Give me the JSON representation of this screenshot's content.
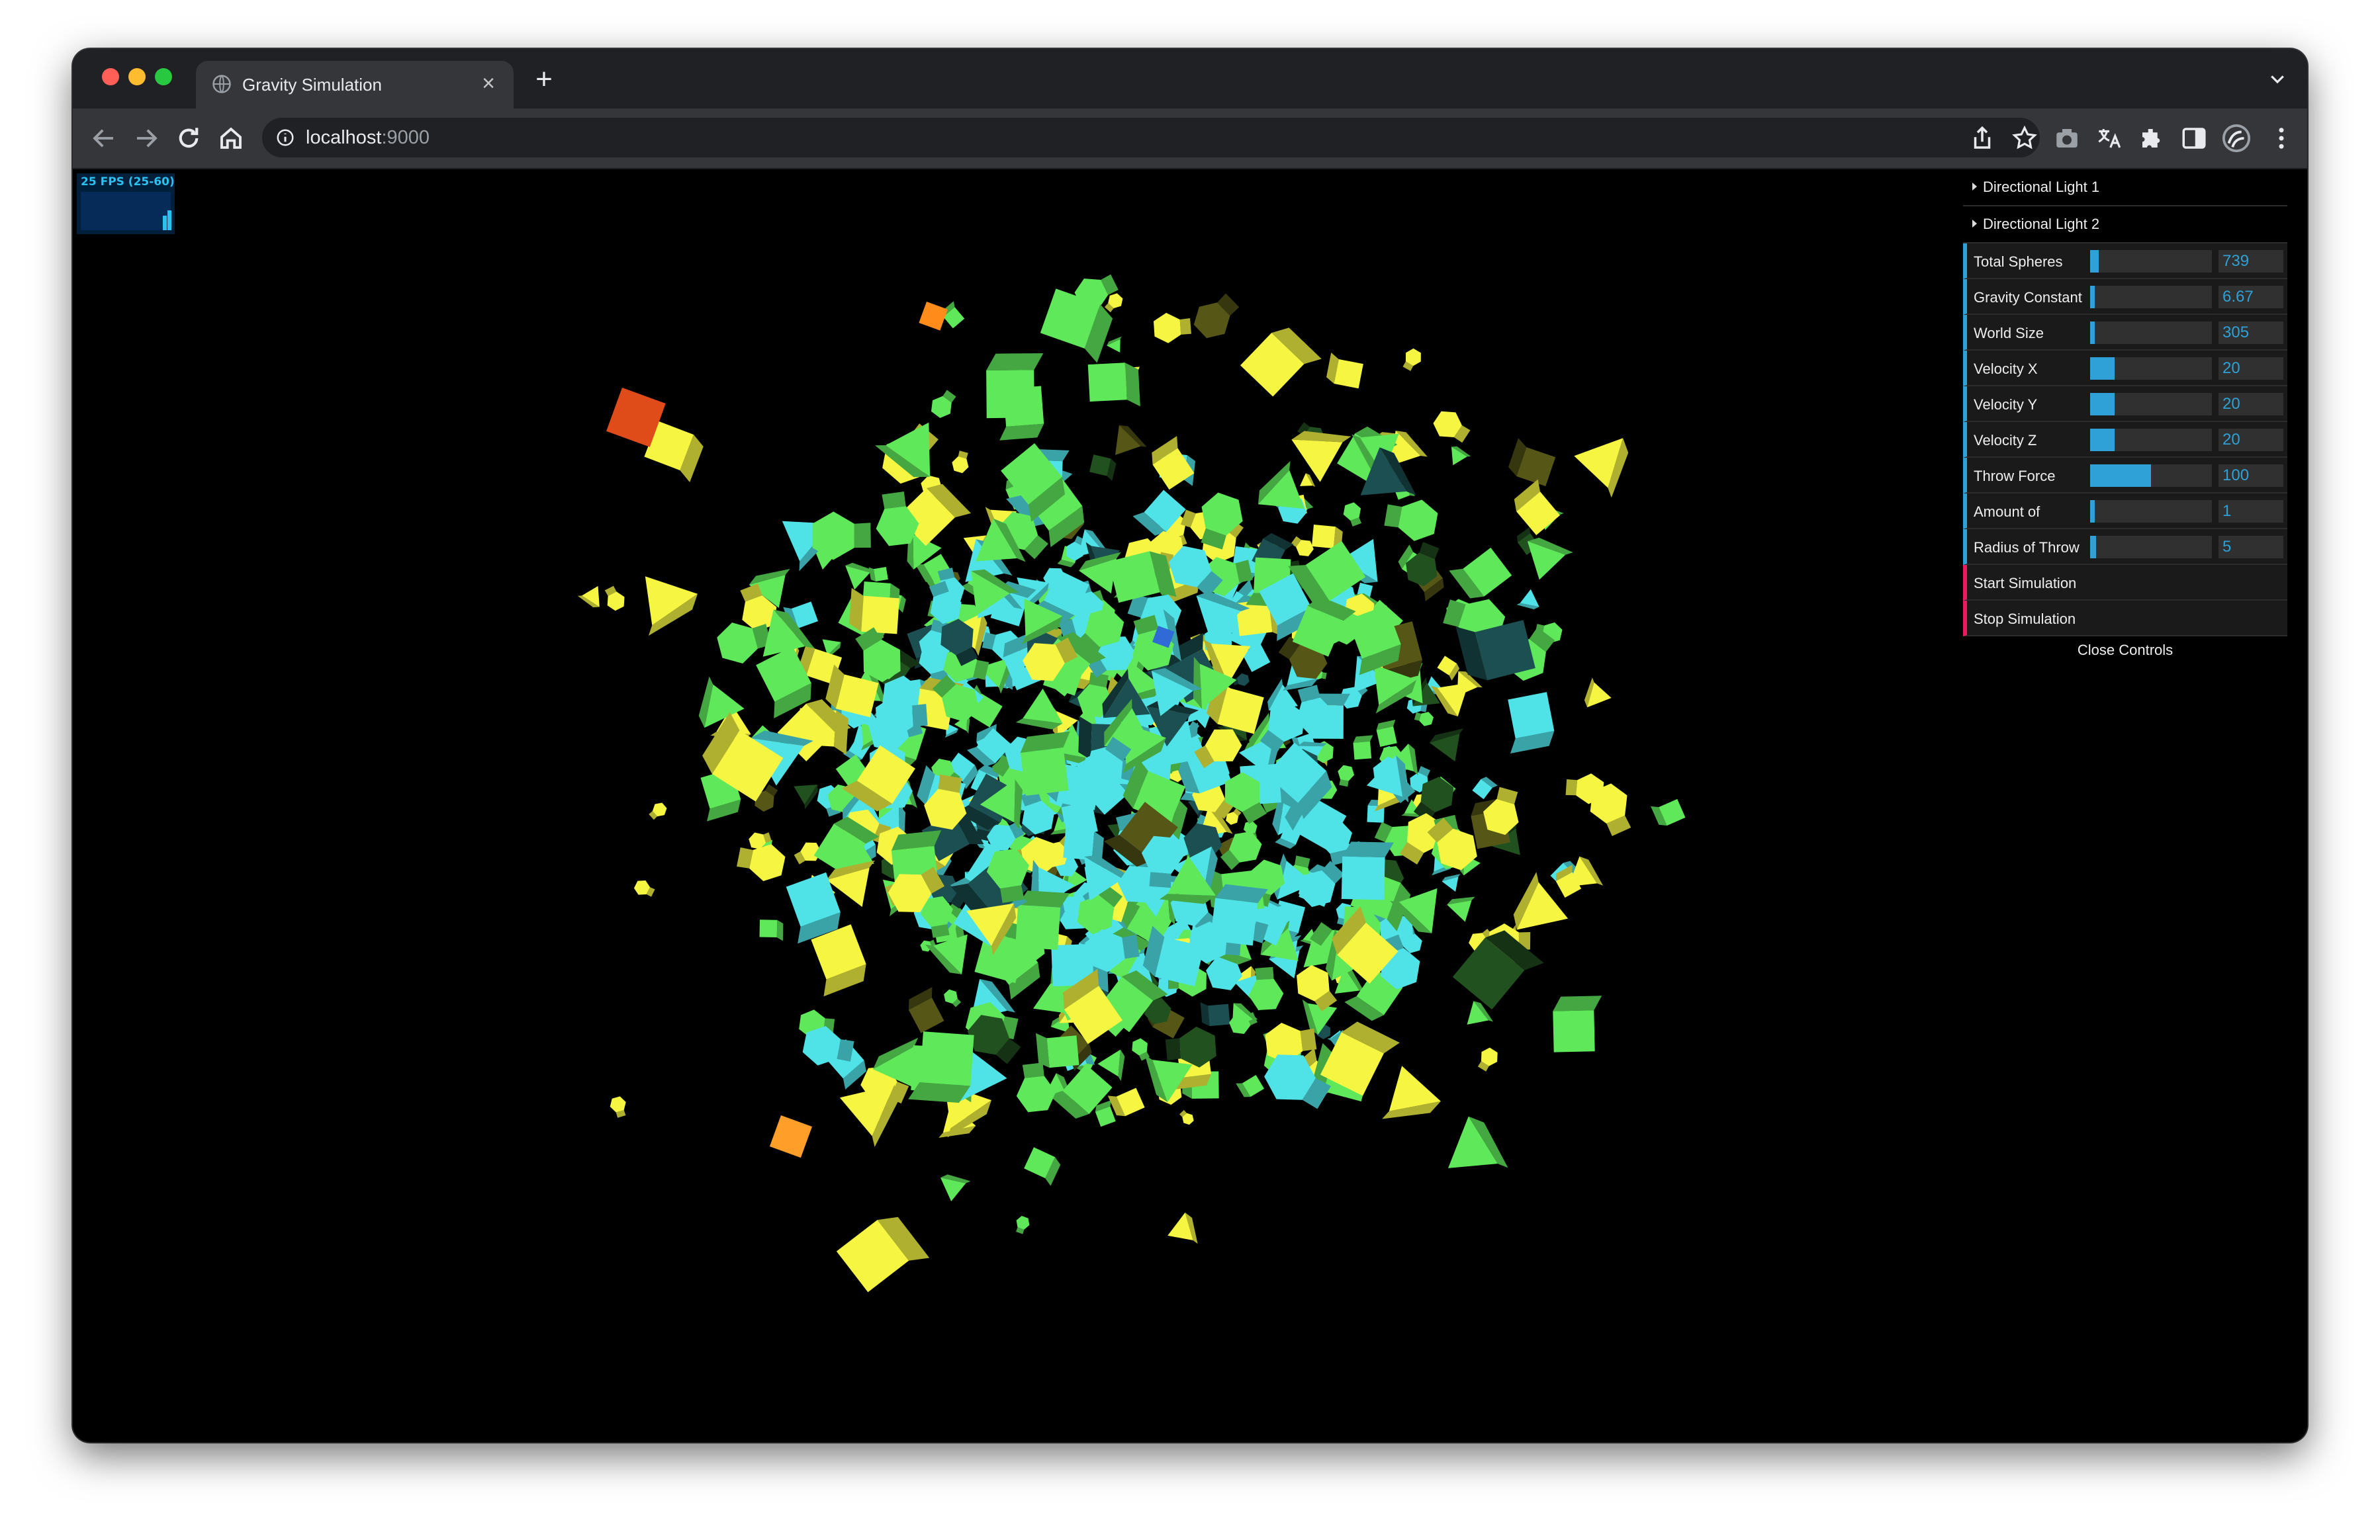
{
  "browser": {
    "tab_title": "Gravity Simulation",
    "tab_close": "×",
    "new_tab": "+",
    "url_host": "localhost",
    "url_port": ":9000"
  },
  "stats": {
    "fps_label": "25 FPS (25-60)",
    "fps_current": 25,
    "fps_min": 25,
    "fps_max": 60
  },
  "gui": {
    "folders": [
      {
        "label": "Directional Light 1"
      },
      {
        "label": "Directional Light 2"
      }
    ],
    "controls": [
      {
        "label": "Total Spheres",
        "value": "739",
        "fill": 0.07
      },
      {
        "label": "Gravity Constant",
        "value": "6.67",
        "fill": 0.0
      },
      {
        "label": "World Size",
        "value": "305",
        "fill": 0.02
      },
      {
        "label": "Velocity X",
        "value": "20",
        "fill": 0.2
      },
      {
        "label": "Velocity Y",
        "value": "20",
        "fill": 0.2
      },
      {
        "label": "Velocity Z",
        "value": "20",
        "fill": 0.2
      },
      {
        "label": "Throw Force",
        "value": "100",
        "fill": 0.5
      },
      {
        "label": "Amount of",
        "value": "1",
        "fill": 0.0
      },
      {
        "label": "Radius of Throw",
        "value": "5",
        "fill": 0.05
      }
    ],
    "buttons": [
      {
        "label": "Start Simulation"
      },
      {
        "label": "Stop Simulation"
      }
    ],
    "close_label": "Close Controls"
  },
  "colors": {
    "accent": "#2fa1d6",
    "function_accent": "#e61d5f",
    "shape_yellow": "#f5f542",
    "shape_green": "#5fe85a",
    "shape_cyan": "#4fe3e8"
  }
}
